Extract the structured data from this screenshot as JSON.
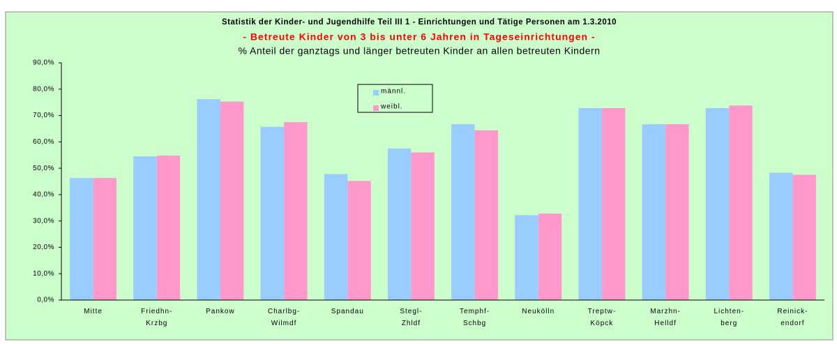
{
  "chart_data": {
    "type": "bar",
    "title": "Statistik der Kinder- und Jugendhilfe Teil III 1 - Einrichtungen und Tätige Personen am 1.3.2010",
    "subtitle": "- Betreute Kinder von 3 bis unter 6 Jahren in Tageseinrichtungen -",
    "description": "% Anteil der ganztags und länger betreuten Kinder an allen betreuten Kindern",
    "categories": [
      "Mitte",
      "Friedhn-\nKrzbg",
      "Pankow",
      "Charlbg-\nWilmdf",
      "Spandau",
      "Stegl-\nZhldf",
      "Temphf-\nSchbg",
      "Neukölln",
      "Treptw-\nKöpck",
      "Marzhn-\nHelldf",
      "Lichten-\nberg",
      "Reinick-\nendorf"
    ],
    "series": [
      {
        "name": "männl.",
        "color": "#99ccff",
        "values": [
          46.3,
          54.5,
          76.2,
          65.7,
          47.8,
          57.5,
          66.7,
          32.2,
          72.8,
          66.7,
          72.8,
          48.3
        ]
      },
      {
        "name": "weibl.",
        "color": "#ff99cc",
        "values": [
          46.3,
          54.8,
          75.3,
          67.5,
          45.2,
          56.0,
          64.4,
          32.8,
          72.8,
          66.7,
          73.8,
          47.5
        ]
      }
    ],
    "ylim": [
      0,
      90
    ],
    "yticks": [
      {
        "value": 0,
        "label": "0,0%"
      },
      {
        "value": 10,
        "label": "10,0%"
      },
      {
        "value": 20,
        "label": "20,0%"
      },
      {
        "value": 30,
        "label": "30,0%"
      },
      {
        "value": 40,
        "label": "40,0%"
      },
      {
        "value": 50,
        "label": "50,0%"
      },
      {
        "value": 60,
        "label": "60,0%"
      },
      {
        "value": 70,
        "label": "70,0%"
      },
      {
        "value": 80,
        "label": "80,0%"
      },
      {
        "value": 90,
        "label": "90,0%"
      }
    ],
    "grid": false
  }
}
